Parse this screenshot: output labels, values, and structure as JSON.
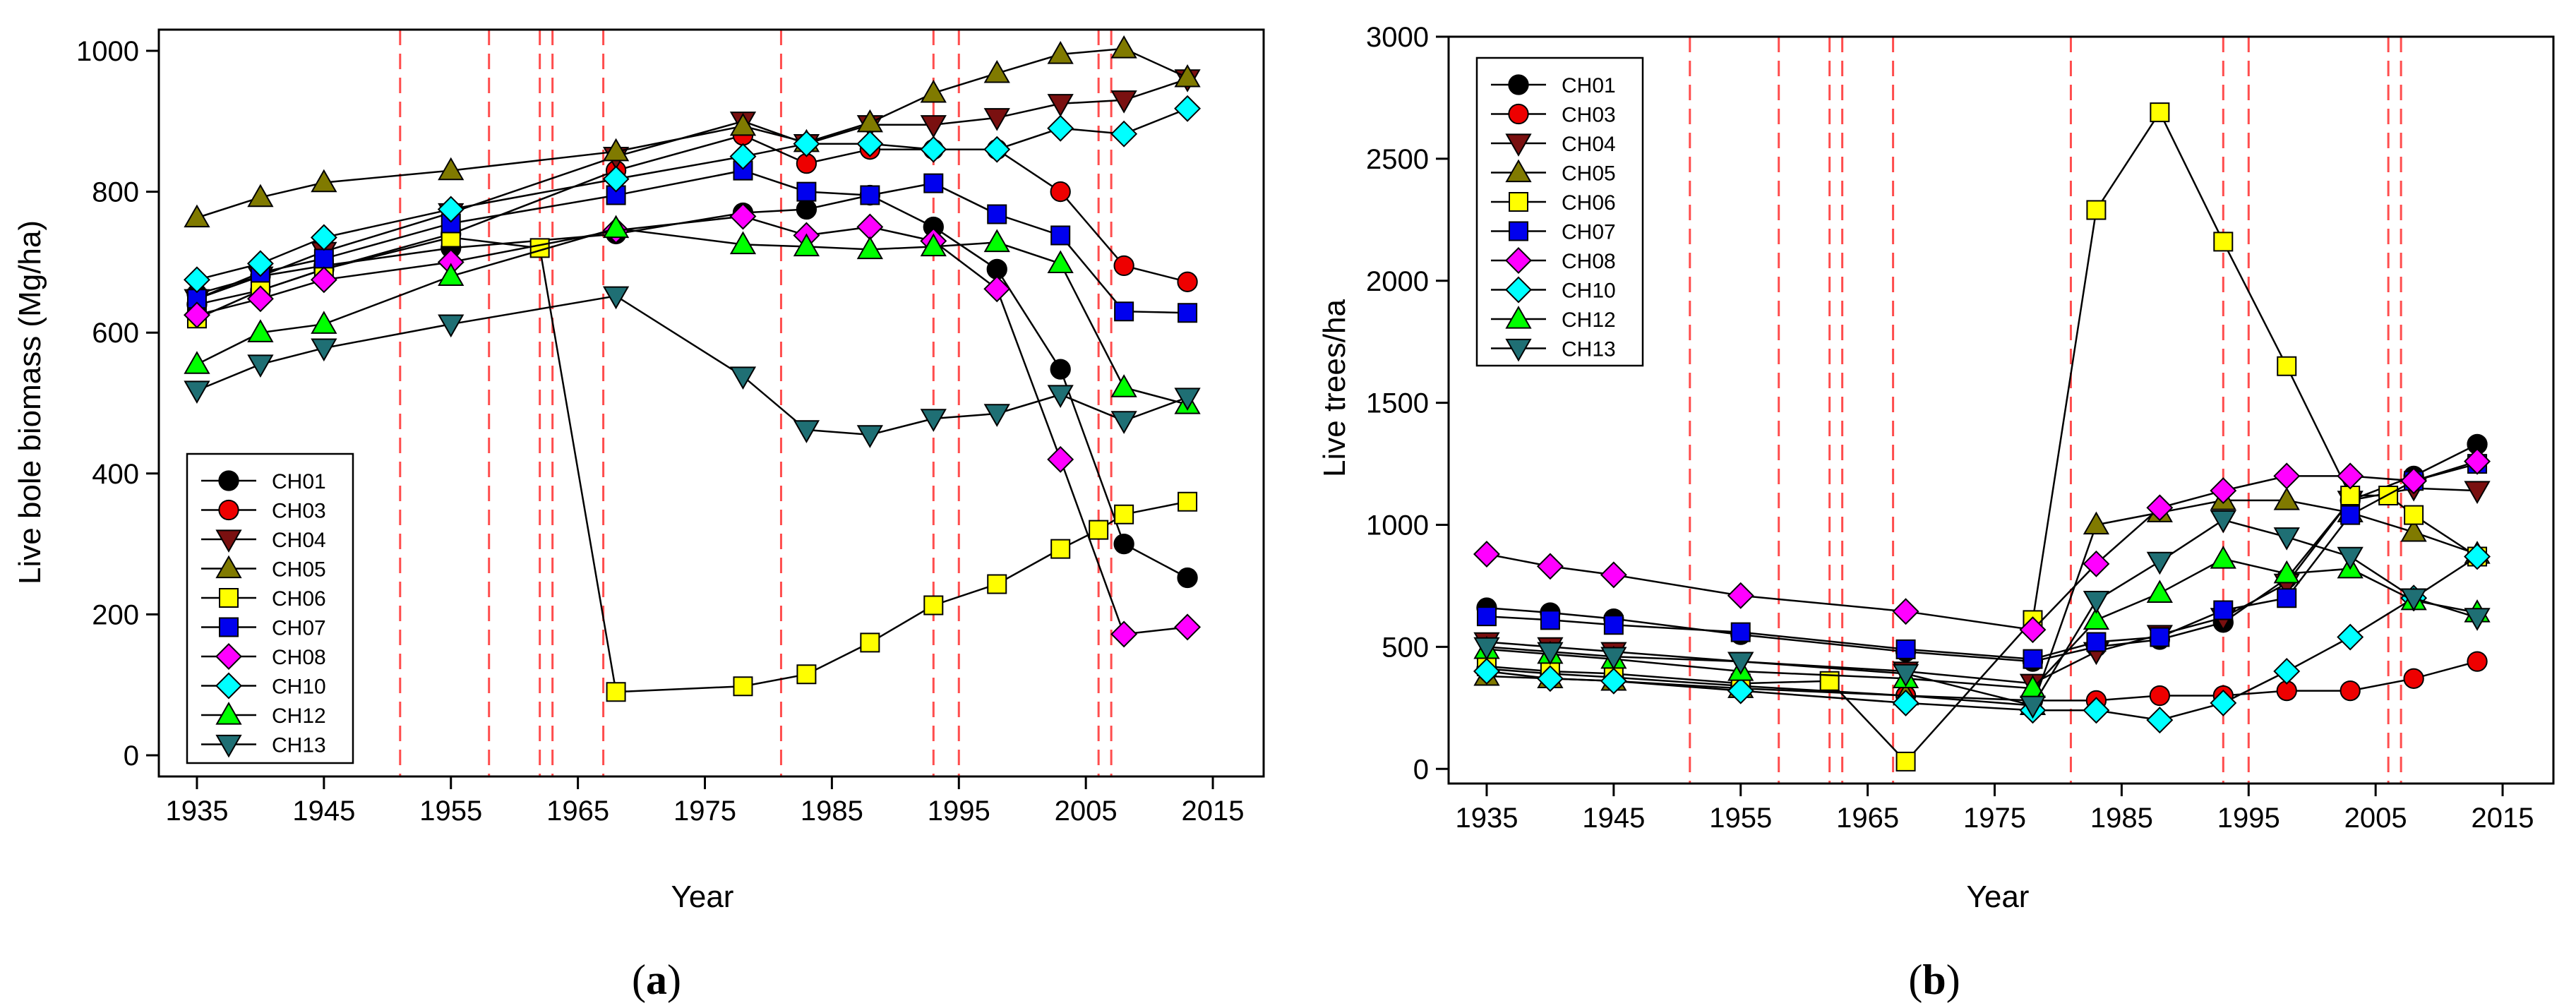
{
  "colors": {
    "CH01": "#000000",
    "CH03": "#ee0000",
    "CH04": "#7a1010",
    "CH05": "#807a00",
    "CH06": "#ffff00",
    "CH07": "#0000ee",
    "CH08": "#ff00ff",
    "CH10": "#00ffff",
    "CH12": "#00ff00",
    "CH13": "#1f6f74",
    "disturbance": "#ff4d4d"
  },
  "markers": {
    "CH01": "circle",
    "CH03": "circle",
    "CH04": "tri-down",
    "CH05": "tri-up",
    "CH06": "square",
    "CH07": "square",
    "CH08": "diamond",
    "CH10": "diamond",
    "CH12": "tri-up",
    "CH13": "tri-down"
  },
  "chart_data": [
    {
      "type": "line",
      "panel_label": "a",
      "caption_open": "(",
      "caption_close": ")",
      "xlabel": "Year",
      "ylabel": "Live bole biomass (Mg/ha)",
      "xlim": [
        1932,
        2019
      ],
      "ylim": [
        -30,
        1030
      ],
      "xticks": [
        1935,
        1945,
        1955,
        1965,
        1975,
        1985,
        1995,
        2005,
        2015
      ],
      "yticks": [
        0,
        200,
        400,
        600,
        800,
        1000
      ],
      "disturbance_years": [
        1951,
        1958,
        1962,
        1963,
        1967,
        1981,
        1993,
        1995,
        2006,
        2007
      ],
      "legend": [
        "CH01",
        "CH03",
        "CH04",
        "CH05",
        "CH06",
        "CH07",
        "CH08",
        "CH10",
        "CH12",
        "CH13"
      ],
      "legend_position": "lower-left",
      "series": [
        {
          "name": "CH01",
          "x": [
            1935,
            1940,
            1945,
            1955,
            1968,
            1978,
            1983,
            1988,
            1993,
            1998,
            2003,
            2008,
            2013
          ],
          "values": [
            655,
            680,
            695,
            720,
            740,
            770,
            775,
            795,
            750,
            690,
            548,
            300,
            252
          ]
        },
        {
          "name": "CH03",
          "x": [
            1935,
            1940,
            1945,
            1955,
            1968,
            1978,
            1983,
            1988,
            1993,
            1998,
            2003,
            2008,
            2013
          ],
          "values": [
            640,
            660,
            690,
            740,
            830,
            880,
            840,
            860,
            860,
            860,
            800,
            695,
            672
          ]
        },
        {
          "name": "CH04",
          "x": [
            1935,
            1940,
            1945,
            1955,
            1968,
            1978,
            1983,
            1988,
            1993,
            1998,
            2003,
            2008,
            2013
          ],
          "values": [
            648,
            680,
            715,
            770,
            850,
            900,
            868,
            895,
            895,
            905,
            925,
            930,
            960
          ]
        },
        {
          "name": "CH05",
          "x": [
            1935,
            1940,
            1945,
            1955,
            1968,
            1978,
            1983,
            1988,
            1993,
            1998,
            2003,
            2008,
            2013
          ],
          "values": [
            763,
            792,
            813,
            830,
            857,
            893,
            870,
            898,
            940,
            968,
            995,
            1003,
            962
          ]
        },
        {
          "name": "CH06",
          "x": [
            1935,
            1940,
            1945,
            1955,
            1962,
            1968,
            1978,
            1983,
            1988,
            1993,
            1998,
            2003,
            2006,
            2008,
            2013
          ],
          "values": [
            620,
            660,
            690,
            735,
            720,
            90,
            98,
            115,
            160,
            213,
            243,
            293,
            320,
            342,
            360
          ]
        },
        {
          "name": "CH07",
          "x": [
            1935,
            1940,
            1945,
            1955,
            1968,
            1978,
            1983,
            1988,
            1993,
            1998,
            2003,
            2008,
            2013
          ],
          "values": [
            648,
            685,
            705,
            755,
            795,
            830,
            800,
            795,
            812,
            768,
            738,
            630,
            628
          ]
        },
        {
          "name": "CH08",
          "x": [
            1935,
            1940,
            1945,
            1955,
            1968,
            1978,
            1983,
            1988,
            1993,
            1998,
            2003,
            2008,
            2013
          ],
          "values": [
            625,
            648,
            675,
            700,
            745,
            765,
            738,
            750,
            730,
            662,
            420,
            172,
            182
          ]
        },
        {
          "name": "CH10",
          "x": [
            1935,
            1940,
            1945,
            1955,
            1968,
            1978,
            1983,
            1988,
            1993,
            1998,
            2003,
            2008,
            2013
          ],
          "values": [
            675,
            698,
            735,
            775,
            818,
            850,
            868,
            868,
            860,
            860,
            890,
            882,
            918
          ]
        },
        {
          "name": "CH12",
          "x": [
            1935,
            1940,
            1945,
            1955,
            1968,
            1978,
            1983,
            1988,
            1993,
            1998,
            2003,
            2008,
            2013
          ],
          "values": [
            555,
            600,
            612,
            680,
            748,
            725,
            722,
            718,
            722,
            728,
            698,
            522,
            498
          ]
        },
        {
          "name": "CH13",
          "x": [
            1935,
            1940,
            1945,
            1955,
            1968,
            1978,
            1983,
            1988,
            1993,
            1998,
            2003,
            2008,
            2013
          ],
          "values": [
            518,
            555,
            578,
            612,
            652,
            538,
            462,
            455,
            478,
            485,
            512,
            475,
            508
          ]
        }
      ]
    },
    {
      "type": "line",
      "panel_label": "b",
      "caption_open": "(",
      "caption_close": ")",
      "xlabel": "Year",
      "ylabel": "Live trees/ha",
      "xlim": [
        1932,
        2019
      ],
      "ylim": [
        -60,
        3000
      ],
      "xticks": [
        1935,
        1945,
        1955,
        1965,
        1975,
        1985,
        1995,
        2005,
        2015
      ],
      "yticks": [
        0,
        500,
        1000,
        1500,
        2000,
        2500,
        3000
      ],
      "disturbance_years": [
        1951,
        1958,
        1962,
        1963,
        1967,
        1981,
        1993,
        1995,
        2006,
        2007
      ],
      "legend": [
        "CH01",
        "CH03",
        "CH04",
        "CH05",
        "CH06",
        "CH07",
        "CH08",
        "CH10",
        "CH12",
        "CH13"
      ],
      "legend_position": "upper-left",
      "series": [
        {
          "name": "CH01",
          "x": [
            1935,
            1940,
            1945,
            1955,
            1968,
            1978,
            1983,
            1988,
            1993,
            1998,
            2003,
            2008,
            2013
          ],
          "values": [
            660,
            640,
            615,
            550,
            480,
            440,
            500,
            530,
            600,
            780,
            1100,
            1200,
            1330
          ]
        },
        {
          "name": "CH03",
          "x": [
            1935,
            1940,
            1945,
            1955,
            1968,
            1978,
            1983,
            1988,
            1993,
            1998,
            2003,
            2008,
            2013
          ],
          "values": [
            410,
            390,
            375,
            340,
            300,
            280,
            280,
            300,
            300,
            320,
            320,
            370,
            440
          ]
        },
        {
          "name": "CH04",
          "x": [
            1935,
            1940,
            1945,
            1955,
            1968,
            1978,
            1983,
            1988,
            1993,
            1998,
            2003,
            2008,
            2013
          ],
          "values": [
            520,
            500,
            480,
            440,
            400,
            350,
            480,
            550,
            620,
            760,
            1100,
            1150,
            1140
          ]
        },
        {
          "name": "CH05",
          "x": [
            1935,
            1940,
            1945,
            1955,
            1968,
            1978,
            1983,
            1988,
            1993,
            1998,
            2003,
            2008,
            2013
          ],
          "values": [
            380,
            370,
            360,
            330,
            300,
            260,
            1000,
            1050,
            1100,
            1100,
            1050,
            970,
            880
          ]
        },
        {
          "name": "CH06",
          "x": [
            1935,
            1940,
            1945,
            1955,
            1962,
            1968,
            1978,
            1983,
            1988,
            1993,
            1998,
            2003,
            2006,
            2008,
            2013
          ],
          "values": [
            420,
            400,
            390,
            350,
            360,
            30,
            610,
            2290,
            2690,
            2160,
            1650,
            1120,
            1120,
            1040,
            870
          ]
        },
        {
          "name": "CH07",
          "x": [
            1935,
            1940,
            1945,
            1955,
            1968,
            1978,
            1983,
            1988,
            1993,
            1998,
            2003,
            2008,
            2013
          ],
          "values": [
            625,
            610,
            590,
            560,
            490,
            450,
            520,
            540,
            650,
            700,
            1040,
            1180,
            1250
          ]
        },
        {
          "name": "CH08",
          "x": [
            1935,
            1940,
            1945,
            1955,
            1968,
            1978,
            1983,
            1988,
            1993,
            1998,
            2003,
            2008,
            2013
          ],
          "values": [
            880,
            830,
            795,
            710,
            645,
            570,
            840,
            1070,
            1140,
            1200,
            1200,
            1180,
            1260
          ]
        },
        {
          "name": "CH10",
          "x": [
            1935,
            1940,
            1945,
            1955,
            1968,
            1978,
            1983,
            1988,
            1993,
            1998,
            2003,
            2008,
            2013
          ],
          "values": [
            400,
            370,
            360,
            320,
            270,
            240,
            240,
            200,
            270,
            400,
            540,
            700,
            870
          ]
        },
        {
          "name": "CH12",
          "x": [
            1935,
            1940,
            1945,
            1955,
            1968,
            1978,
            1983,
            1988,
            1993,
            1998,
            2003,
            2008,
            2013
          ],
          "values": [
            490,
            470,
            450,
            400,
            370,
            330,
            610,
            720,
            860,
            800,
            820,
            690,
            640
          ]
        },
        {
          "name": "CH13",
          "x": [
            1935,
            1940,
            1945,
            1955,
            1968,
            1978,
            1983,
            1988,
            1993,
            1998,
            2003,
            2008,
            2013
          ],
          "values": [
            500,
            480,
            460,
            440,
            390,
            260,
            690,
            850,
            1020,
            950,
            870,
            700,
            620
          ]
        }
      ]
    }
  ]
}
